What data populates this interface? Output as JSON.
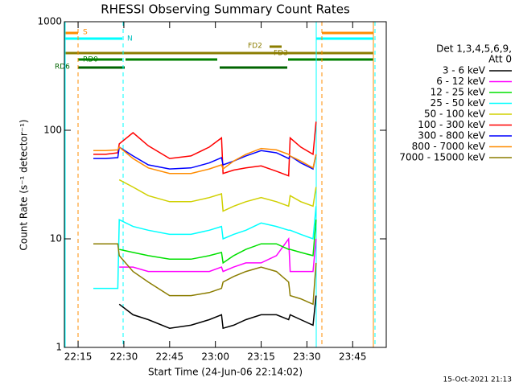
{
  "chart_data": {
    "type": "line",
    "title": "RHESSI Observing Summary Count Rates",
    "x_label": "Start Time (24-Jun-06 22:14:02)",
    "y_label": "Count Rate (s⁻¹ detector⁻¹)",
    "footer": "15-Oct-2021 21:13",
    "legend_header": [
      "Det 1,3,4,5,6,9,",
      "Att 0"
    ],
    "annotations": [
      "S",
      "N",
      "FD2",
      "FD3",
      "RD0",
      "RD6"
    ],
    "log_y": true,
    "xlim": [
      10.5,
      116
    ],
    "ylim": [
      1,
      1000
    ],
    "xticks": [
      {
        "value": 15,
        "label": "22:15"
      },
      {
        "value": 30,
        "label": "22:30"
      },
      {
        "value": 45,
        "label": "22:45"
      },
      {
        "value": 60,
        "label": "23:00"
      },
      {
        "value": 75,
        "label": "23:15"
      },
      {
        "value": 90,
        "label": "23:30"
      },
      {
        "value": 105,
        "label": "23:45"
      }
    ],
    "yticks": [
      1,
      10,
      100,
      1000
    ],
    "x": [
      20,
      24,
      28,
      28.5,
      33,
      38,
      45,
      52,
      58,
      62,
      62.5,
      66,
      70,
      75,
      80,
      84,
      84.5,
      88,
      92,
      93
    ],
    "series": [
      {
        "name": "3 - 6 keV",
        "color": "#000000",
        "values": [
          null,
          null,
          null,
          2.5,
          2,
          1.8,
          1.5,
          1.6,
          1.8,
          2,
          1.5,
          1.6,
          1.8,
          2,
          2,
          1.8,
          2,
          1.8,
          1.6,
          3
        ]
      },
      {
        "name": "6 - 12 keV",
        "color": "#ff00ff",
        "values": [
          null,
          null,
          null,
          5.5,
          5.5,
          5,
          5,
          5,
          5,
          5.5,
          5,
          5.5,
          6,
          6,
          7,
          10,
          5,
          5,
          5,
          10
        ]
      },
      {
        "name": "12 - 25 keV",
        "color": "#00e000",
        "values": [
          null,
          null,
          null,
          8,
          7.5,
          7,
          6.5,
          6.5,
          7,
          7.5,
          6,
          7,
          8,
          9,
          9,
          8,
          8,
          7.5,
          7,
          15
        ]
      },
      {
        "name": "25 - 50 keV",
        "color": "#00ffff",
        "values": [
          3.5,
          3.5,
          3.5,
          15,
          13,
          12,
          11,
          11,
          12,
          13,
          10,
          11,
          12,
          14,
          13,
          12,
          12,
          11,
          10,
          20
        ]
      },
      {
        "name": "50 - 100 keV",
        "color": "#d0d000",
        "values": [
          null,
          null,
          null,
          35,
          30,
          25,
          22,
          22,
          24,
          26,
          18,
          20,
          22,
          24,
          22,
          20,
          25,
          22,
          20,
          30
        ]
      },
      {
        "name": "100 - 300 keV",
        "color": "#ff0000",
        "values": [
          60,
          60,
          62,
          75,
          95,
          72,
          55,
          58,
          70,
          85,
          40,
          43,
          45,
          47,
          42,
          38,
          85,
          70,
          60,
          120
        ]
      },
      {
        "name": "300 - 800 keV",
        "color": "#0000ff",
        "values": [
          55,
          55,
          56,
          70,
          58,
          48,
          44,
          45,
          50,
          56,
          48,
          52,
          58,
          65,
          62,
          55,
          58,
          50,
          44,
          60
        ]
      },
      {
        "name": "800 - 7000 keV",
        "color": "#ff8c00",
        "values": [
          65,
          65,
          66,
          70,
          55,
          45,
          40,
          40,
          44,
          48,
          44,
          52,
          60,
          68,
          66,
          60,
          58,
          52,
          45,
          60
        ]
      },
      {
        "name": "7000 - 15000 keV",
        "color": "#8b7d00",
        "values": [
          9,
          9,
          9,
          7,
          5,
          4,
          3,
          3,
          3.2,
          3.5,
          4,
          4.5,
          5,
          5.5,
          5,
          4,
          3,
          2.8,
          2.5,
          6
        ]
      }
    ]
  }
}
